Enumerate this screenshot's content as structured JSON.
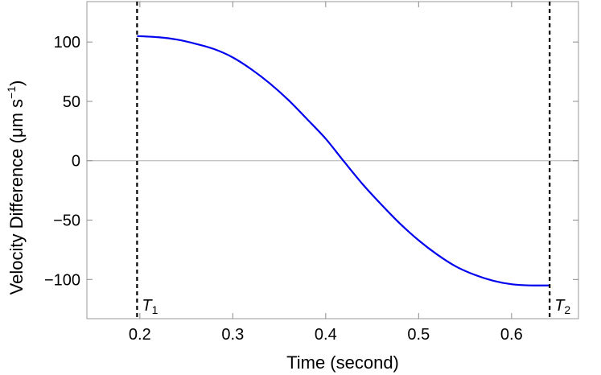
{
  "chart_data": {
    "type": "line",
    "title": "",
    "xlabel": "Time (second)",
    "ylabel": "Velocity Difference",
    "ylabel_unit": "μm s",
    "ylabel_unit_exp": "−1",
    "xlim": [
      0.143,
      0.672
    ],
    "ylim": [
      -133,
      134
    ],
    "x_ticks": [
      0.2,
      0.3,
      0.4,
      0.5,
      0.6
    ],
    "x_tick_labels": [
      "0.2",
      "0.3",
      "0.4",
      "0.5",
      "0.6"
    ],
    "y_ticks": [
      100,
      50,
      0,
      -50,
      -100
    ],
    "y_tick_labels": [
      "100",
      "50",
      "0",
      "−50",
      "−100"
    ],
    "grid": false,
    "zero_line": true,
    "series": [
      {
        "color": "#0000ee",
        "x": [
          0.197,
          0.22,
          0.24,
          0.26,
          0.28,
          0.3,
          0.32,
          0.34,
          0.36,
          0.38,
          0.4,
          0.419,
          0.44,
          0.46,
          0.48,
          0.5,
          0.52,
          0.54,
          0.56,
          0.58,
          0.6,
          0.62,
          0.641
        ],
        "y": [
          105,
          104,
          102,
          98.5,
          94,
          87,
          77,
          65,
          51,
          35,
          18.5,
          0,
          -20,
          -37,
          -53,
          -67,
          -79,
          -89,
          -96,
          -101,
          -104,
          -105,
          -105
        ]
      }
    ],
    "vertical_markers": [
      {
        "x": 0.197,
        "label": "T",
        "subscript": "1"
      },
      {
        "x": 0.641,
        "label": "T",
        "subscript": "2"
      }
    ]
  }
}
